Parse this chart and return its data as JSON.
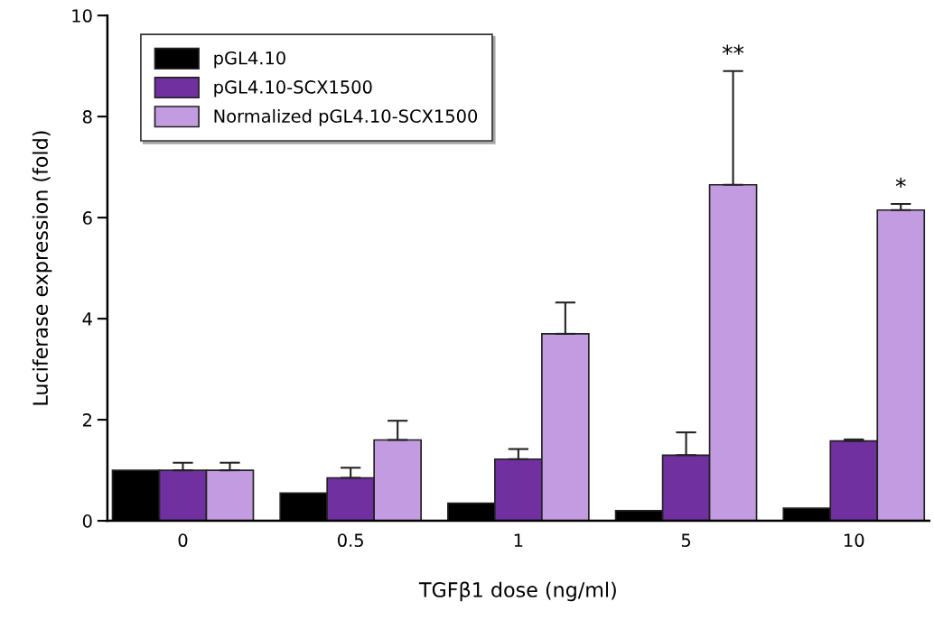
{
  "chart_data": {
    "type": "bar",
    "xlabel": "TGFβ1 dose (ng/ml)",
    "ylabel": "Luciferase expression (fold)",
    "categories": [
      "0",
      "0.5",
      "1",
      "5",
      "10"
    ],
    "series": [
      {
        "name": "pGL4.10",
        "color": "#000000",
        "values": [
          1.0,
          0.55,
          0.35,
          0.2,
          0.25
        ]
      },
      {
        "name": "pGL4.10-SCX1500",
        "color": "#7030a0",
        "values": [
          1.0,
          0.85,
          1.22,
          1.3,
          1.58
        ],
        "errors": [
          0.15,
          0.2,
          0.2,
          0.45,
          0.03
        ]
      },
      {
        "name": "Normalized pGL4.10-SCX1500",
        "color": "#c39be0",
        "values": [
          1.0,
          1.6,
          3.7,
          6.65,
          6.15
        ],
        "errors": [
          0.15,
          0.38,
          0.62,
          2.25,
          0.12
        ]
      }
    ],
    "annotations": [
      "**",
      "*"
    ],
    "ylim": [
      0,
      10
    ],
    "yticks": [
      0,
      2,
      4,
      6,
      8,
      10
    ],
    "grid": false,
    "legend": "top left"
  }
}
